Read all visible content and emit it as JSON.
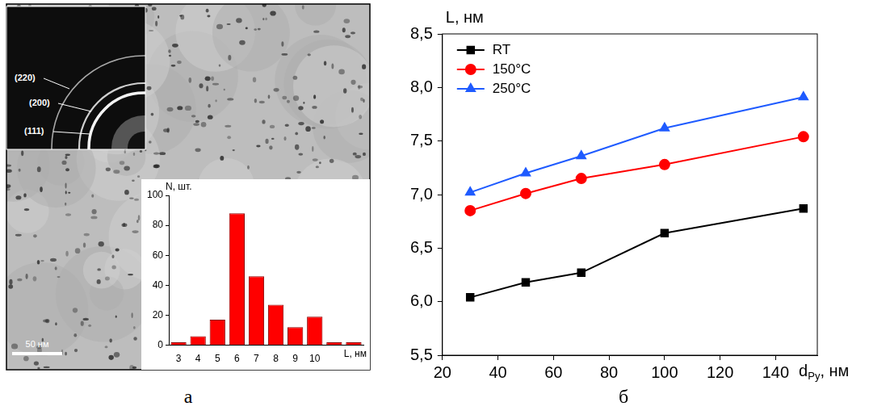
{
  "image": {
    "scale_bar": "50 нм",
    "diffraction_rings": [
      "(220)",
      "(200)",
      "(111)"
    ]
  },
  "chart_data": [
    {
      "panel": "а",
      "type": "bar",
      "x_label": "L, нм",
      "y_label": "N, шт.",
      "categories": [
        "3",
        "4",
        "5",
        "6",
        "7",
        "8",
        "9",
        "10",
        null,
        null
      ],
      "values": [
        2,
        6,
        17,
        88,
        46,
        27,
        12,
        19,
        2,
        2
      ],
      "color": "#ff0000",
      "ylim": [
        0,
        100
      ],
      "yticks": [
        0,
        20,
        40,
        60,
        80,
        100
      ],
      "grid": false
    },
    {
      "panel": "б",
      "type": "line",
      "y_label": "L, нм",
      "x_label": {
        "base": "d",
        "subscript": "Py",
        "rest": ", нм"
      },
      "x": [
        30,
        50,
        70,
        100,
        150
      ],
      "series": [
        {
          "name": "RT",
          "color": "#000000",
          "marker": "square",
          "values": [
            6.04,
            6.18,
            6.27,
            6.64,
            6.87
          ]
        },
        {
          "name": "150°C",
          "color": "#ff0000",
          "marker": "circle",
          "values": [
            6.85,
            7.01,
            7.15,
            7.28,
            7.54
          ]
        },
        {
          "name": "250°C",
          "color": "#1f5bff",
          "marker": "triangle",
          "values": [
            7.02,
            7.2,
            7.36,
            7.62,
            7.91
          ]
        }
      ],
      "xlim": [
        20,
        155
      ],
      "xticks": [
        20,
        40,
        60,
        80,
        100,
        120,
        140
      ],
      "ylim": [
        5.5,
        8.5
      ],
      "yticks": [
        {
          "value": 5.5,
          "label": "5,5"
        },
        {
          "value": 6.0,
          "label": "6,0"
        },
        {
          "value": 6.5,
          "label": "6,5"
        },
        {
          "value": 7.0,
          "label": "7,0"
        },
        {
          "value": 7.5,
          "label": "7,5"
        },
        {
          "value": 8.0,
          "label": "8,0"
        },
        {
          "value": 8.5,
          "label": "8,5"
        }
      ],
      "grid": false,
      "legend": "upper left"
    }
  ]
}
